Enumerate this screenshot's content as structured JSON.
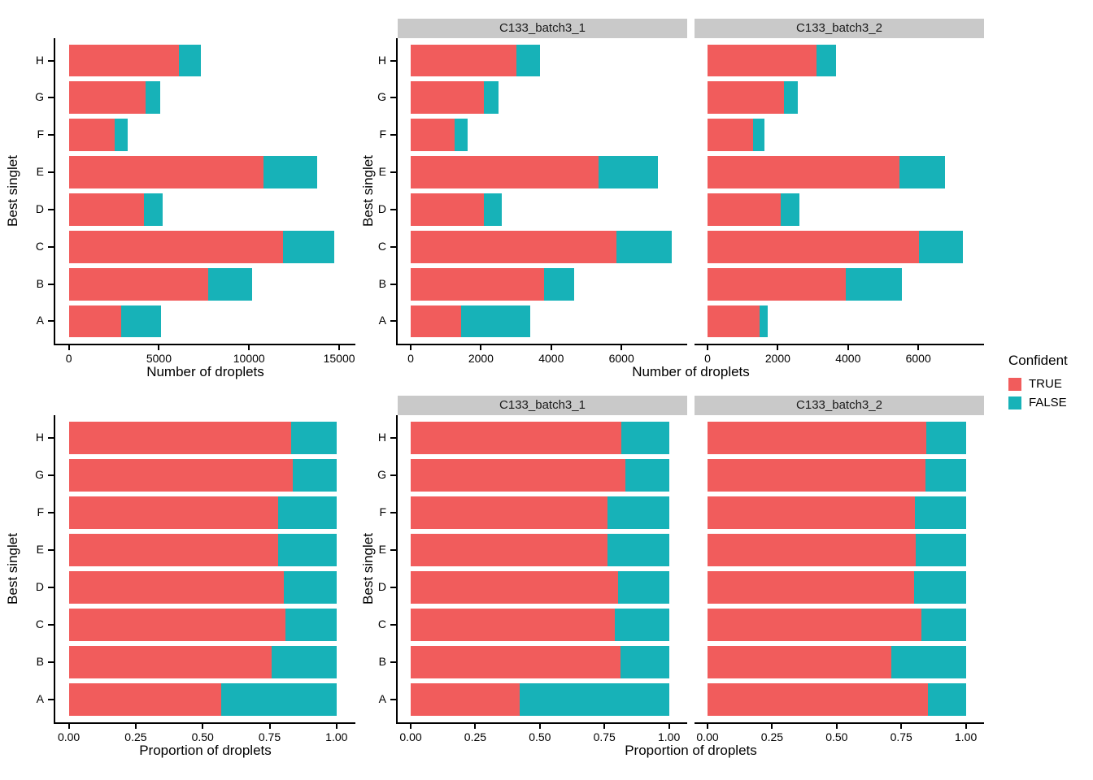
{
  "legend": {
    "title": "Confident",
    "items": [
      {
        "label": "TRUE",
        "color": "#F15C5C"
      },
      {
        "label": "FALSE",
        "color": "#17B2B8"
      }
    ]
  },
  "colors": {
    "true": "#F15C5C",
    "false": "#17B2B8",
    "strip_bg": "#C9C9C9",
    "axis": "#000000"
  },
  "chart_data": [
    {
      "id": "counts_overall",
      "type": "bar",
      "orientation": "horizontal",
      "stacked": true,
      "categories": [
        "A",
        "B",
        "C",
        "D",
        "E",
        "F",
        "G",
        "H"
      ],
      "xlabel": "Number of droplets",
      "ylabel": "Best singlet",
      "xticks": [
        0,
        5000,
        10000,
        15000
      ],
      "xtick_labels": [
        "0",
        "5000",
        "10000",
        "15000"
      ],
      "xlim": [
        0,
        15150
      ],
      "grid": false,
      "panels": [
        {
          "strip": null,
          "series": [
            {
              "name": "TRUE",
              "values": [
                2900,
                7730,
                11890,
                4170,
                10810,
                2540,
                4250,
                6100
              ]
            },
            {
              "name": "FALSE",
              "values": [
                2200,
                2450,
                2820,
                1030,
                2990,
                710,
                820,
                1240
              ]
            }
          ]
        }
      ]
    },
    {
      "id": "counts_by_batch",
      "type": "bar",
      "orientation": "horizontal",
      "stacked": true,
      "categories": [
        "A",
        "B",
        "C",
        "D",
        "E",
        "F",
        "G",
        "H"
      ],
      "xlabel": "Number of droplets",
      "ylabel": "Best singlet",
      "xticks": [
        0,
        2000,
        4000,
        6000
      ],
      "xtick_labels": [
        "0",
        "2000",
        "4000",
        "6000"
      ],
      "xlim": [
        0,
        7500
      ],
      "grid": false,
      "panels": [
        {
          "strip": "C133_batch3_1",
          "series": [
            {
              "name": "TRUE",
              "values": [
                1440,
                3790,
                5860,
                2080,
                5350,
                1240,
                2080,
                3000
              ]
            },
            {
              "name": "FALSE",
              "values": [
                1970,
                870,
                1570,
                510,
                1680,
                390,
                420,
                680
              ]
            }
          ]
        },
        {
          "strip": "C133_batch3_2",
          "series": [
            {
              "name": "TRUE",
              "values": [
                1470,
                3940,
                6030,
                2090,
                5460,
                1300,
                2170,
                3100
              ]
            },
            {
              "name": "FALSE",
              "values": [
                240,
                1590,
                1250,
                520,
                1310,
                320,
                400,
                560
              ]
            }
          ]
        }
      ]
    },
    {
      "id": "proportion_overall",
      "type": "bar",
      "orientation": "horizontal",
      "stacked": true,
      "categories": [
        "A",
        "B",
        "C",
        "D",
        "E",
        "F",
        "G",
        "H"
      ],
      "xlabel": "Proportion of droplets",
      "ylabel": "Best singlet",
      "xticks": [
        0,
        0.25,
        0.5,
        0.75,
        1.0
      ],
      "xtick_labels": [
        "0.00",
        "0.25",
        "0.50",
        "0.75",
        "1.00"
      ],
      "xlim": [
        0,
        1.02
      ],
      "grid": false,
      "panels": [
        {
          "strip": null,
          "series": [
            {
              "name": "TRUE",
              "values": [
                0.568,
                0.759,
                0.808,
                0.802,
                0.783,
                0.782,
                0.838,
                0.831
              ]
            },
            {
              "name": "FALSE",
              "values": [
                0.432,
                0.241,
                0.192,
                0.198,
                0.217,
                0.218,
                0.162,
                0.169
              ]
            }
          ]
        }
      ]
    },
    {
      "id": "proportion_by_batch",
      "type": "bar",
      "orientation": "horizontal",
      "stacked": true,
      "categories": [
        "A",
        "B",
        "C",
        "D",
        "E",
        "F",
        "G",
        "H"
      ],
      "xlabel": "Proportion of droplets",
      "ylabel": "Best singlet",
      "xticks": [
        0,
        0.25,
        0.5,
        0.75,
        1.0
      ],
      "xtick_labels": [
        "0.00",
        "0.25",
        "0.50",
        "0.75",
        "1.00"
      ],
      "xlim": [
        0,
        1.02
      ],
      "grid": false,
      "panels": [
        {
          "strip": "C133_batch3_1",
          "series": [
            {
              "name": "TRUE",
              "values": [
                0.422,
                0.813,
                0.789,
                0.803,
                0.761,
                0.761,
                0.832,
                0.815
              ]
            },
            {
              "name": "FALSE",
              "values": [
                0.578,
                0.187,
                0.211,
                0.197,
                0.239,
                0.239,
                0.168,
                0.185
              ]
            }
          ]
        },
        {
          "strip": "C133_batch3_2",
          "series": [
            {
              "name": "TRUE",
              "values": [
                0.854,
                0.712,
                0.828,
                0.801,
                0.807,
                0.802,
                0.844,
                0.847
              ]
            },
            {
              "name": "FALSE",
              "values": [
                0.146,
                0.288,
                0.172,
                0.199,
                0.193,
                0.198,
                0.156,
                0.153
              ]
            }
          ]
        }
      ]
    }
  ]
}
